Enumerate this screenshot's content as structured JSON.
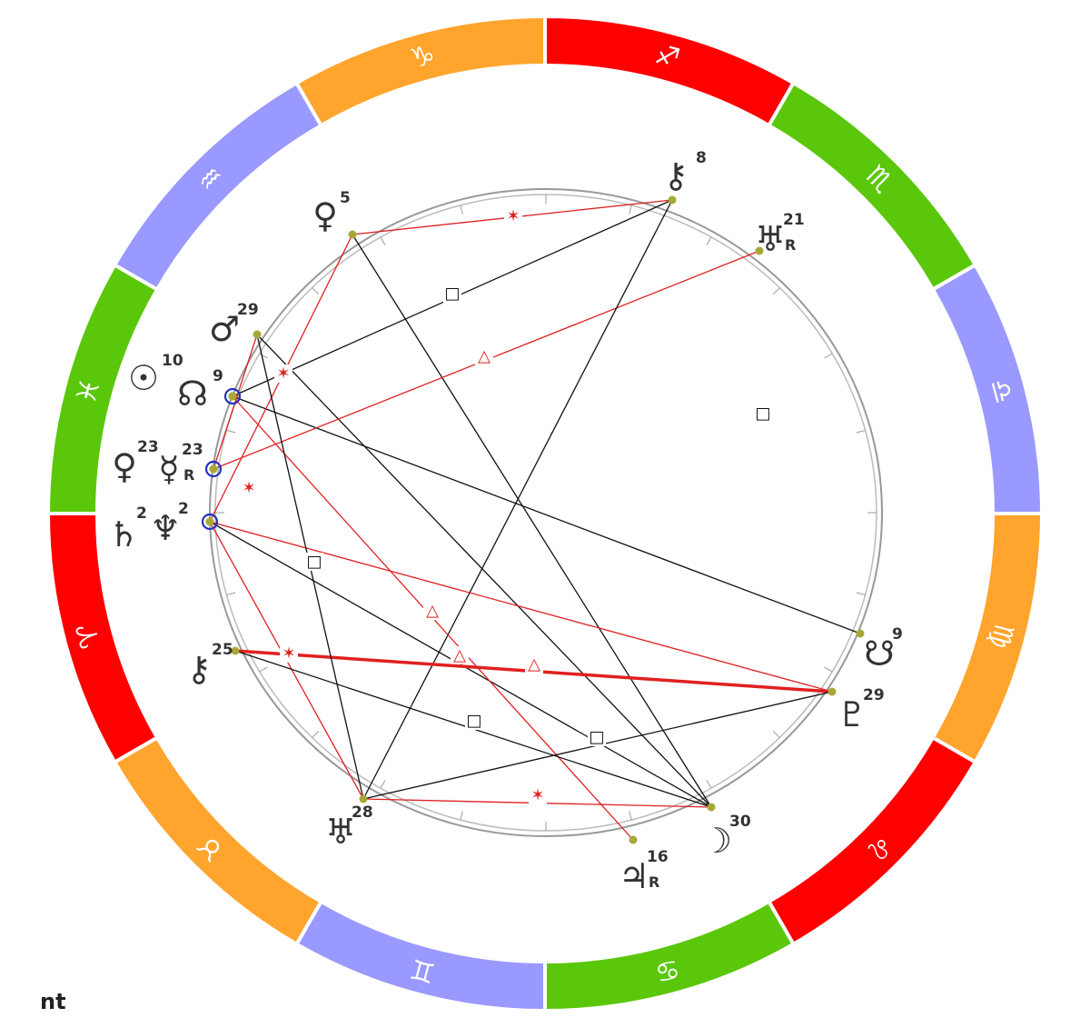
{
  "colors": {
    "fire": "#ff0000",
    "earth": "#ffa42c",
    "air": "#9999ff",
    "water": "#5ac70a",
    "harmonious": "#e02020",
    "tense": "#111111",
    "planet_dot": "#a8a83a",
    "conjunction_ring": "#2233bb"
  },
  "zodiac": [
    {
      "name": "sagittarius",
      "glyph": "♐",
      "color": "#ff0000"
    },
    {
      "name": "scorpio",
      "glyph": "♏",
      "color": "#5ac70a"
    },
    {
      "name": "libra",
      "glyph": "♎",
      "color": "#9999ff"
    },
    {
      "name": "virgo",
      "glyph": "♍",
      "color": "#ffa42c"
    },
    {
      "name": "leo",
      "glyph": "♌",
      "color": "#ff0000"
    },
    {
      "name": "cancer",
      "glyph": "♋",
      "color": "#5ac70a"
    },
    {
      "name": "gemini",
      "glyph": "♊",
      "color": "#9999ff"
    },
    {
      "name": "taurus",
      "glyph": "♉",
      "color": "#ffa42c"
    },
    {
      "name": "aries",
      "glyph": "♈",
      "color": "#ff0000"
    },
    {
      "name": "pisces",
      "glyph": "♓",
      "color": "#5ac70a"
    },
    {
      "name": "aquarius",
      "glyph": "♒",
      "color": "#9999ff"
    },
    {
      "name": "capricorn",
      "glyph": "♑",
      "color": "#ffa42c"
    }
  ],
  "planets": [
    {
      "id": "chiron",
      "glyph": "⚷",
      "deg": "8",
      "retro": ""
    },
    {
      "id": "pluto",
      "glyph": "♀",
      "deg": "5",
      "retro": ""
    },
    {
      "id": "uranus",
      "glyph": "♅",
      "deg": "21",
      "retro": "R"
    },
    {
      "id": "mars",
      "glyph": "♂",
      "deg": "29",
      "retro": ""
    },
    {
      "id": "sun",
      "glyph": "☉",
      "deg": "10",
      "retro": ""
    },
    {
      "id": "node",
      "glyph": "☊",
      "deg": "9",
      "retro": ""
    },
    {
      "id": "venus",
      "glyph": "♀",
      "deg": "23",
      "retro": ""
    },
    {
      "id": "mercury",
      "glyph": "☿",
      "deg": "23",
      "retro": "R"
    },
    {
      "id": "saturn",
      "glyph": "♄",
      "deg": "2",
      "retro": ""
    },
    {
      "id": "neptune",
      "glyph": "♆",
      "deg": "2",
      "retro": ""
    },
    {
      "id": "chiron-asc",
      "glyph": "⚷",
      "deg": "25",
      "retro": ""
    },
    {
      "id": "south-node",
      "glyph": "☋",
      "deg": "9",
      "retro": ""
    },
    {
      "id": "proserpina",
      "glyph": "♇",
      "deg": "29",
      "retro": ""
    },
    {
      "id": "uranus-alt",
      "glyph": "♅",
      "deg": "28",
      "retro": ""
    },
    {
      "id": "moon",
      "glyph": "☽",
      "deg": "30",
      "retro": ""
    },
    {
      "id": "jupiter",
      "glyph": "♃",
      "deg": "16",
      "retro": "R"
    }
  ],
  "aspect_symbols": {
    "square": "□",
    "trine": "△",
    "sextile": "✶"
  },
  "aspects": [
    {
      "type": "sextile",
      "style": "harmonious"
    },
    {
      "type": "square",
      "style": "tense"
    },
    {
      "type": "trine",
      "style": "harmonious"
    },
    {
      "type": "square",
      "style": "tense"
    },
    {
      "type": "sextile",
      "style": "harmonious"
    },
    {
      "type": "sextile",
      "style": "harmonious"
    },
    {
      "type": "trine",
      "style": "harmonious"
    },
    {
      "type": "trine",
      "style": "harmonious"
    },
    {
      "type": "trine",
      "style": "harmonious"
    },
    {
      "type": "sextile",
      "style": "harmonious"
    },
    {
      "type": "square",
      "style": "tense"
    },
    {
      "type": "square",
      "style": "tense"
    },
    {
      "type": "sextile",
      "style": "harmonious"
    },
    {
      "type": "square",
      "style": "tense"
    }
  ],
  "footer": {
    "text": "nt"
  }
}
